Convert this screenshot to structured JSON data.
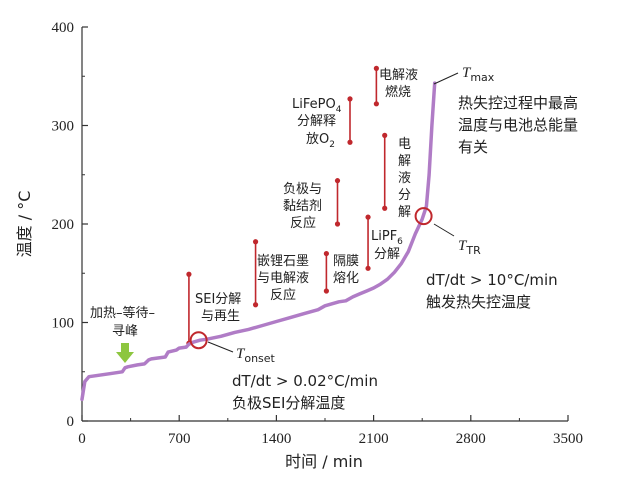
{
  "chart_data": {
    "type": "line",
    "xlabel": "时间 / min",
    "ylabel": "温度 / °C",
    "xlim": [
      0,
      3500
    ],
    "ylim": [
      0,
      400
    ],
    "xticks": [
      "0",
      "700",
      "1400",
      "2100",
      "2800",
      "3500"
    ],
    "yticks": [
      "0",
      "100",
      "200",
      "300",
      "400"
    ],
    "series": [
      {
        "color": "#b07cc6",
        "x": [
          0,
          20,
          50,
          100,
          150,
          200,
          290,
          310,
          330,
          400,
          450,
          480,
          500,
          600,
          620,
          680,
          700,
          750,
          770,
          800,
          850,
          900,
          1000,
          1100,
          1200,
          1300,
          1400,
          1500,
          1600,
          1700,
          1750,
          1800,
          1850,
          1900,
          1950,
          2000,
          2050,
          2100,
          2150,
          2200,
          2250,
          2300,
          2350,
          2400,
          2450,
          2480,
          2500,
          2520,
          2540
        ],
        "y": [
          22,
          40,
          45,
          46,
          47,
          48,
          50,
          54,
          55,
          57,
          58,
          62,
          63,
          65,
          70,
          72,
          74,
          75,
          78,
          80,
          82,
          83,
          86,
          90,
          93,
          97,
          101,
          105,
          109,
          113,
          117,
          119,
          121,
          122,
          126,
          129,
          132,
          135,
          139,
          144,
          151,
          160,
          172,
          190,
          205,
          218,
          250,
          300,
          343
        ]
      }
    ],
    "event_lines": [
      {
        "x": 770,
        "y1": 79,
        "y2": 149,
        "label": "SEI分解与再生"
      },
      {
        "x": 1250,
        "y1": 118,
        "y2": 182,
        "label": "嵌锂石墨与电解液反应"
      },
      {
        "x": 1760,
        "y1": 132,
        "y2": 170,
        "label": "隔膜熔化"
      },
      {
        "x": 1840,
        "y1": 200,
        "y2": 244,
        "label": "负极与黏结剂反应"
      },
      {
        "x": 1930,
        "y1": 283,
        "y2": 327,
        "label": "LiFePO4分解释放O2"
      },
      {
        "x": 2060,
        "y1": 155,
        "y2": 207,
        "label": "LiPF6分解"
      },
      {
        "x": 2120,
        "y1": 322,
        "y2": 358,
        "label": "电解液燃烧"
      },
      {
        "x": 2180,
        "y1": 216,
        "y2": 290,
        "label": "电解液分解"
      }
    ],
    "markers": [
      {
        "name": "T_onset",
        "x": 840,
        "y": 82
      },
      {
        "name": "T_TR",
        "x": 2460,
        "y": 208
      }
    ]
  },
  "text": {
    "heating_label_1": "加热–等待–",
    "heating_label_2": "寻峰",
    "sei_1": "SEI分解",
    "sei_2": "与再生",
    "graphite_1": "嵌锂石墨",
    "graphite_2": "与电解液",
    "graphite_3": "反应",
    "separator_1": "隔膜",
    "separator_2": "熔化",
    "binder_1": "负极与",
    "binder_2": "黏结剂",
    "binder_3": "反应",
    "lifepo4_1": "LiFePO",
    "lifepo4_sub": "4",
    "lifepo4_2": "分解释",
    "lifepo4_3": "放O",
    "lifepo4_3_sub": "2",
    "lipf6_1": "LiPF",
    "lipf6_sub": "6",
    "lipf6_2": "分解",
    "combust_1": "电解液",
    "combust_2": "燃烧",
    "decomp_1": "电",
    "decomp_2": "解",
    "decomp_3": "液",
    "decomp_4": "分",
    "decomp_5": "解",
    "tmax_T": "T",
    "tmax_sub": "max",
    "tmax_desc_1": "热失控过程中最高",
    "tmax_desc_2": "温度与电池总能量",
    "tmax_desc_3": "有关",
    "ttr_T": "T",
    "ttr_sub": "TR",
    "ttr_desc_1": "dT/dt > 10°C/min",
    "ttr_desc_2": "触发热失控温度",
    "tonset_T": "T",
    "tonset_sub": "onset",
    "tonset_desc_1": "dT/dt > 0.02°C/min",
    "tonset_desc_2": "负极SEI分解温度"
  },
  "colors": {
    "curve": "#b07cc6",
    "event_line": "#c0282d",
    "marker": "#c0282d",
    "arrow": "#8dc63f",
    "axis": "#333333"
  }
}
